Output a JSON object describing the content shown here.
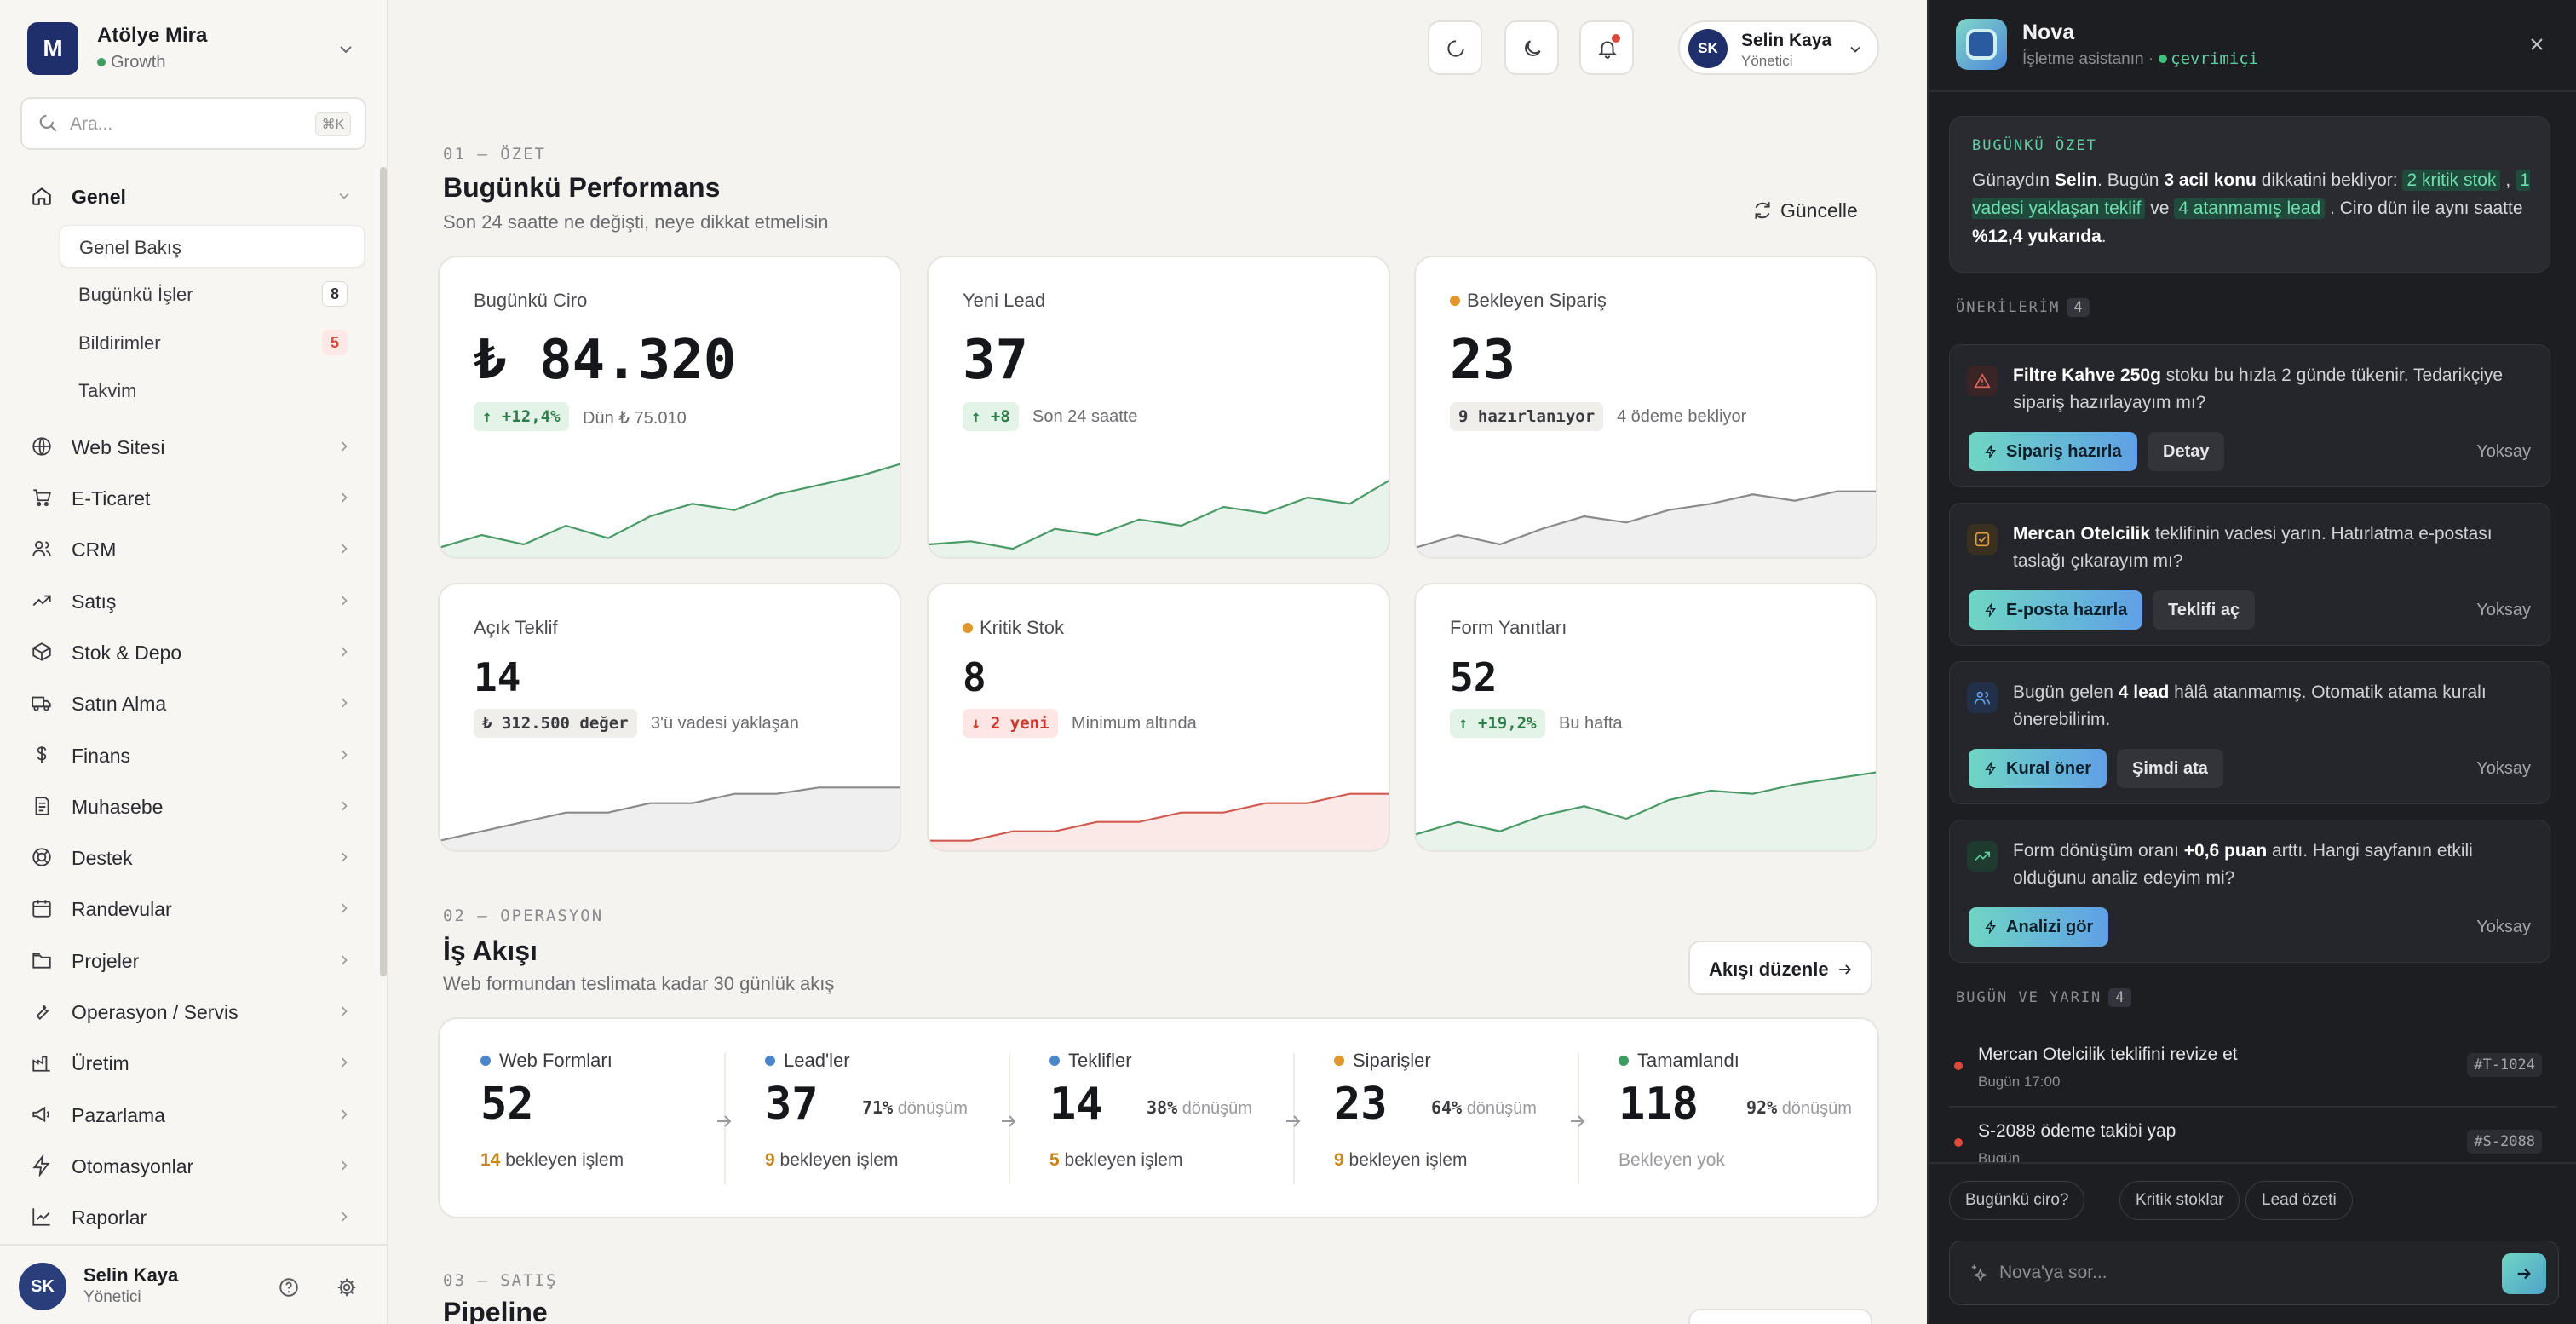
{
  "workspace": {
    "initial": "M",
    "name": "Atölye Mira",
    "plan": "Growth"
  },
  "search": {
    "placeholder": "Ara...",
    "shortcut": "⌘K"
  },
  "nav": {
    "genel": "Genel",
    "sub": [
      {
        "label": "Genel Bakış",
        "count": ""
      },
      {
        "label": "Bugünkü İşler",
        "count": "8"
      },
      {
        "label": "Bildirimler",
        "count": "5"
      },
      {
        "label": "Takvim",
        "count": ""
      }
    ],
    "items": [
      "Web Sitesi",
      "E-Ticaret",
      "CRM",
      "Satış",
      "Stok & Depo",
      "Satın Alma",
      "Finans",
      "Muhasebe",
      "Destek",
      "Randevular",
      "Projeler",
      "Operasyon / Servis",
      "Üretim",
      "Pazarlama",
      "Otomasyonlar",
      "Raporlar"
    ]
  },
  "user": {
    "initials": "SK",
    "name": "Selin Kaya",
    "role": "Yönetici"
  },
  "performance": {
    "num": "01 — ÖZET",
    "title": "Bugünkü Performans",
    "subtitle": "Son 24 saatte ne değişti, neye dikkat etmelisin",
    "refresh_label": "Güncelle",
    "cards": [
      {
        "label": "Bugünkü Ciro",
        "value": "₺ 84.320",
        "chip": "↑ +12,4%",
        "note": "Dün ₺ 75.010",
        "trend": [
          10,
          30,
          15,
          45,
          25,
          60,
          80,
          70,
          95,
          110,
          125,
          145
        ]
      },
      {
        "label": "Yeni Lead",
        "value": "37",
        "chip": "↑ +8",
        "note": "Son 24 saatte",
        "trend": [
          15,
          20,
          8,
          40,
          30,
          55,
          45,
          75,
          65,
          90,
          80,
          120
        ]
      },
      {
        "label": "Bekleyen Sipariş",
        "value": "23",
        "chip": "9 hazırlanıyor",
        "note": "4 ödeme bekliyor",
        "trend": [
          10,
          30,
          15,
          40,
          60,
          50,
          70,
          80,
          95,
          85,
          100,
          100
        ]
      },
      {
        "label": "Açık Teklif",
        "value": "14",
        "chip": "₺ 312.500 değer",
        "note": "3'ü vadesi yaklaşan",
        "trend": [
          10,
          25,
          40,
          55,
          55,
          70,
          70,
          85,
          85,
          95,
          95,
          95
        ]
      },
      {
        "label": "Kritik Stok",
        "value": "8",
        "chip": "↓ 2 yeni",
        "note": "Minimum altında",
        "trend": [
          10,
          10,
          25,
          25,
          40,
          40,
          55,
          55,
          70,
          70,
          85,
          85
        ]
      },
      {
        "label": "Form Yanıtları",
        "value": "52",
        "chip": "↑ +19,2%",
        "note": "Bu hafta",
        "trend": [
          20,
          40,
          25,
          50,
          65,
          45,
          75,
          90,
          85,
          100,
          110,
          120
        ]
      }
    ]
  },
  "workflow": {
    "num": "02 — OPERASYON",
    "title": "İş Akışı",
    "subtitle": "Web formundan teslimata kadar 30 günlük akış",
    "edit_label": "Akışı düzenle",
    "conv_label": "dönüşüm",
    "pending_label": "bekleyen işlem",
    "stages": [
      {
        "label": "Web Formları",
        "value": "52",
        "conv": "",
        "pending": "14",
        "pending_text": ""
      },
      {
        "label": "Lead'ler",
        "value": "37",
        "conv": "71%",
        "pending": "9",
        "pending_text": ""
      },
      {
        "label": "Teklifler",
        "value": "14",
        "conv": "38%",
        "pending": "5",
        "pending_text": ""
      },
      {
        "label": "Siparişler",
        "value": "23",
        "conv": "64%",
        "pending": "9",
        "pending_text": ""
      },
      {
        "label": "Tamamlandı",
        "value": "118",
        "conv": "92%",
        "pending": "",
        "pending_text": "Bekleyen yok"
      }
    ]
  },
  "sales": {
    "num": "03 — SATIŞ",
    "title": "Pipeline"
  },
  "nova": {
    "name": "Nova",
    "subtitle": "İşletme asistanın ·",
    "status": "çevrimiçi",
    "summary_title": "BUGÜNKÜ ÖZET",
    "summary": {
      "t1": "Günaydın ",
      "name": "Selin",
      "t2": ". Bugün ",
      "count": "3 acil konu",
      "t3": " dikkatini bekliyor: ",
      "h1": "2 kritik stok",
      "t4": " , ",
      "h2": "1 vadesi yaklaşan teklif",
      "t5": " ve ",
      "h3": "4 atanmamış lead",
      "t6": " . Ciro dün ile aynı saatte ",
      "pct": "%12,4 yukarıda",
      "t7": "."
    },
    "suggestions_title": "ÖNERİLERİM",
    "suggestions_count": "4",
    "suggestions": [
      {
        "bold": "Filtre Kahve 250g",
        "text": " stoku bu hızla 2 günde tükenir. Tedarikçiye sipariş hazırlayayım mı?",
        "primary": "Sipariş hazırla",
        "secondary": "Detay",
        "dismiss": "Yoksay"
      },
      {
        "bold": "Mercan Otelcilik",
        "text": " teklifinin vadesi yarın. Hatırlatma e-postası taslağı çıkarayım mı?",
        "primary": "E-posta hazırla",
        "secondary": "Teklifi aç",
        "dismiss": "Yoksay"
      },
      {
        "pre": "Bugün gelen ",
        "bold": "4 lead",
        "text": " hâlâ atanmamış. Otomatik atama kuralı önerebilirim.",
        "primary": "Kural öner",
        "secondary": "Şimdi ata",
        "dismiss": "Yoksay"
      },
      {
        "pre": "Form dönüşüm oranı ",
        "bold": "+0,6 puan",
        "text": " arttı. Hangi sayfanın etkili olduğunu analiz edeyim mi?",
        "primary": "Analizi gör",
        "secondary": "",
        "dismiss": "Yoksay"
      }
    ],
    "tasks_title": "BUGÜN VE YARIN",
    "tasks_count": "4",
    "tasks": [
      {
        "title": "Mercan Otelcilik teklifini revize et",
        "time": "Bugün 17:00",
        "id": "#T-1024"
      },
      {
        "title": "S-2088 ödeme takibi yap",
        "time": "Bugün",
        "id": "#S-2088"
      }
    ],
    "quick": [
      "Bugünkü ciro?",
      "Kritik stoklar",
      "Lead özeti"
    ],
    "input_placeholder": "Nova'ya sor..."
  },
  "colors": {
    "accent_green": "#3f9c61",
    "accent_red": "#d9473a",
    "accent_amber": "#d99a2b",
    "nova_teal": "#6fd6c4"
  }
}
